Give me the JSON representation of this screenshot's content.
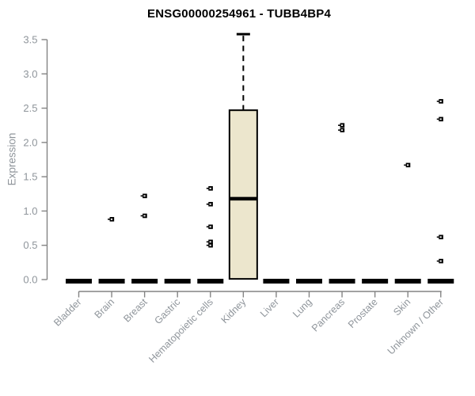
{
  "chart_data": {
    "type": "boxplot",
    "title": "ENSG00000254961 - TUBB4BP4",
    "ylabel": "Expression",
    "ylim": [
      0,
      3.5
    ],
    "yticks": [
      {
        "label": "0.0",
        "value": 0.0
      },
      {
        "label": "0.5",
        "value": 0.5
      },
      {
        "label": "1.0",
        "value": 1.0
      },
      {
        "label": "1.5",
        "value": 1.5
      },
      {
        "label": "2.0",
        "value": 2.0
      },
      {
        "label": "2.5",
        "value": 2.5
      },
      {
        "label": "3.0",
        "value": 3.0
      },
      {
        "label": "3.5",
        "value": 3.5
      }
    ],
    "categories": [
      "Bladder",
      "Brain",
      "Breast",
      "Gastric",
      "Hematopoietic cells",
      "Kidney",
      "Liver",
      "Lung",
      "Pancreas",
      "Prostate",
      "Skin",
      "Unknown / Other"
    ],
    "boxes": [
      {
        "category": "Bladder",
        "q1": 0,
        "median": 0,
        "q3": 0,
        "whisker_low": 0,
        "whisker_high": 0,
        "outliers": []
      },
      {
        "category": "Brain",
        "q1": 0,
        "median": 0,
        "q3": 0,
        "whisker_low": 0,
        "whisker_high": 0,
        "outliers": [
          0.88
        ]
      },
      {
        "category": "Breast",
        "q1": 0,
        "median": 0,
        "q3": 0,
        "whisker_low": 0,
        "whisker_high": 0,
        "outliers": [
          1.22,
          0.93
        ]
      },
      {
        "category": "Gastric",
        "q1": 0,
        "median": 0,
        "q3": 0,
        "whisker_low": 0,
        "whisker_high": 0,
        "outliers": []
      },
      {
        "category": "Hematopoietic cells",
        "q1": 0,
        "median": 0,
        "q3": 0,
        "whisker_low": 0,
        "whisker_high": 0,
        "outliers": [
          1.33,
          1.1,
          0.77,
          0.55,
          0.5
        ]
      },
      {
        "category": "Kidney",
        "q1": 0.01,
        "median": 1.18,
        "q3": 2.47,
        "whisker_low": 0.01,
        "whisker_high": 3.58,
        "outliers": []
      },
      {
        "category": "Liver",
        "q1": 0,
        "median": 0,
        "q3": 0,
        "whisker_low": 0,
        "whisker_high": 0,
        "outliers": []
      },
      {
        "category": "Lung",
        "q1": 0,
        "median": 0,
        "q3": 0,
        "whisker_low": 0,
        "whisker_high": 0,
        "outliers": []
      },
      {
        "category": "Pancreas",
        "q1": 0,
        "median": 0,
        "q3": 0,
        "whisker_low": 0,
        "whisker_high": 0,
        "outliers": [
          2.25,
          2.18
        ]
      },
      {
        "category": "Prostate",
        "q1": 0,
        "median": 0,
        "q3": 0,
        "whisker_low": 0,
        "whisker_high": 0,
        "outliers": []
      },
      {
        "category": "Skin",
        "q1": 0,
        "median": 0,
        "q3": 0,
        "whisker_low": 0,
        "whisker_high": 0,
        "outliers": [
          1.67
        ]
      },
      {
        "category": "Unknown / Other",
        "q1": 0,
        "median": 0,
        "q3": 0,
        "whisker_low": 0,
        "whisker_high": 0,
        "outliers": [
          2.6,
          2.34,
          0.62,
          0.27
        ]
      }
    ],
    "layout_hints": {
      "grid": false,
      "legend": "none",
      "x_label_rotation_deg": 45
    },
    "colors": {
      "box_fill": "#ece6cd",
      "box_border": "#000000",
      "median": "#000000",
      "whisker": "#000000",
      "outlier": "#000000",
      "zero_bar": "#000000",
      "axis_line": "#848484",
      "tick_label": "#8f959b",
      "title": "#000000",
      "background": "#ffffff"
    }
  }
}
